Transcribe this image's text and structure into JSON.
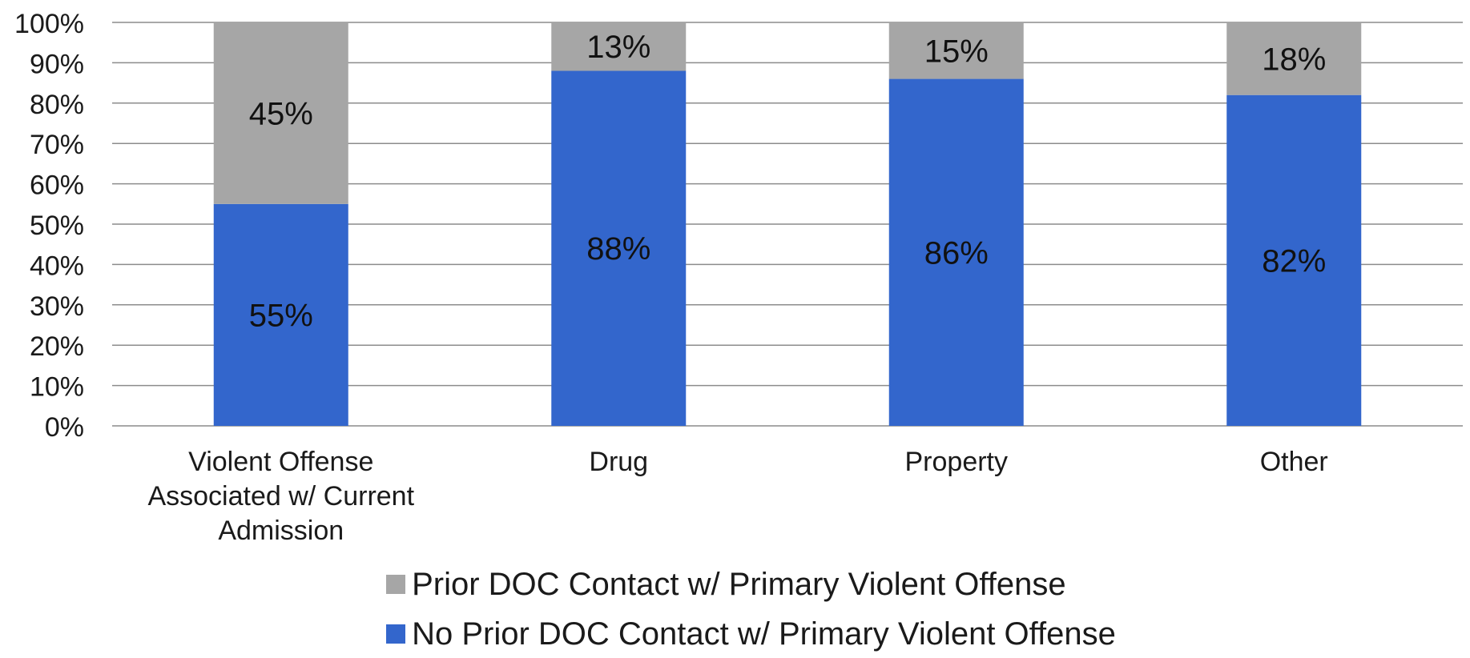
{
  "chart_data": {
    "type": "bar",
    "stacked": true,
    "categories": [
      [
        "Violent Offense",
        "Associated w/ Current",
        "Admission"
      ],
      [
        "Drug"
      ],
      [
        "Property"
      ],
      [
        "Other"
      ]
    ],
    "series": [
      {
        "name": "No Prior DOC Contact w/ Primary Violent Offense",
        "color": "#3366cc",
        "values": [
          55,
          88,
          86,
          82
        ],
        "labels": [
          "55%",
          "88%",
          "86%",
          "82%"
        ]
      },
      {
        "name": "Prior DOC Contact w/ Primary Violent Offense",
        "color": "#a6a6a6",
        "values": [
          45,
          13,
          15,
          18
        ],
        "labels": [
          "45%",
          "13%",
          "15%",
          "18%"
        ]
      }
    ],
    "ylim": [
      0,
      100
    ],
    "yticks": [
      "0%",
      "10%",
      "20%",
      "30%",
      "40%",
      "50%",
      "60%",
      "70%",
      "80%",
      "90%",
      "100%"
    ],
    "grid": true,
    "legend_position": "bottom"
  },
  "legend": [
    {
      "label": "Prior DOC Contact w/ Primary Violent Offense",
      "color": "#a6a6a6"
    },
    {
      "label": "No Prior DOC Contact w/ Primary Violent Offense",
      "color": "#3366cc"
    }
  ]
}
